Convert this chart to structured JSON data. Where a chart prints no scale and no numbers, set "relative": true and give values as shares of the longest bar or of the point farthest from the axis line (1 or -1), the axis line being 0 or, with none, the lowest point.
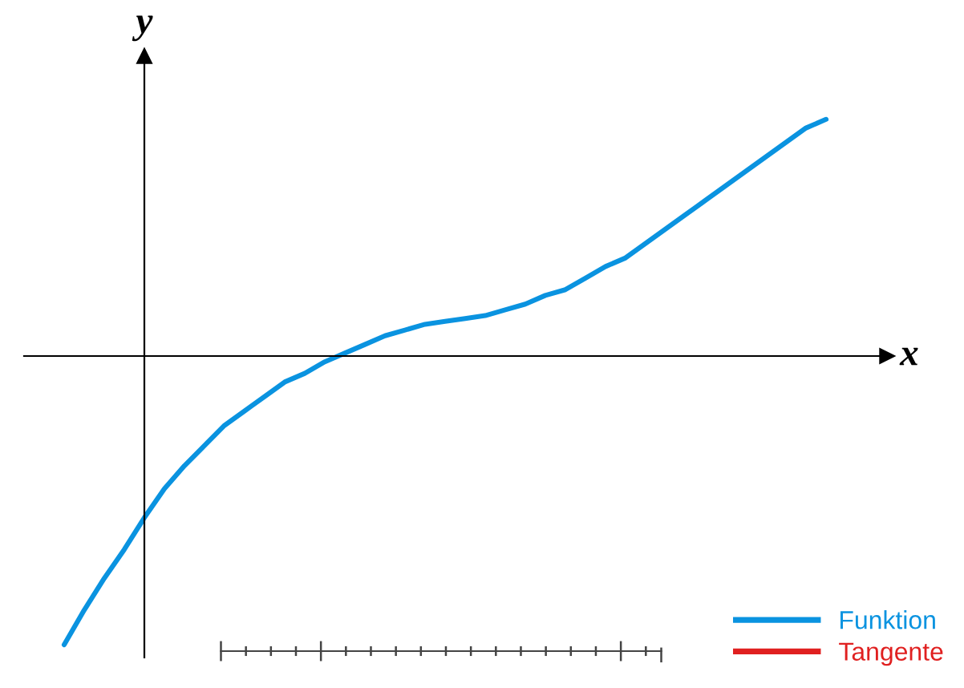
{
  "chart_data": {
    "type": "line",
    "relative": true,
    "xlabel": "x",
    "ylabel": "y",
    "legend": "bottom right",
    "marker": "none",
    "line_style": "solid",
    "categories": [
      null,
      null,
      null,
      null,
      null,
      null,
      null,
      null,
      null,
      null,
      null,
      null,
      null,
      null,
      null,
      null,
      null,
      null,
      null,
      null,
      null,
      null,
      null,
      null,
      null,
      null,
      null,
      null,
      null,
      null,
      null,
      null,
      null,
      null,
      null,
      null,
      null,
      null,
      null
    ],
    "series": [
      {
        "name": "Funktion",
        "color": "#0a93e0",
        "values": [
          -1.0,
          -0.88,
          -0.77,
          -0.67,
          -0.56,
          -0.46,
          -0.38,
          -0.31,
          -0.24,
          -0.19,
          -0.14,
          -0.09,
          -0.06,
          -0.02,
          0.01,
          0.04,
          0.07,
          0.09,
          0.11,
          0.12,
          0.13,
          0.14,
          0.16,
          0.18,
          0.21,
          0.23,
          0.27,
          0.31,
          0.34,
          0.39,
          0.44,
          0.49,
          0.54,
          0.59,
          0.64,
          0.69,
          0.74,
          0.79,
          0.82
        ]
      },
      {
        "name": "Tangente",
        "color": "#e02020",
        "values": [
          null,
          null,
          null,
          null,
          null,
          null,
          null,
          null,
          null,
          null,
          null,
          null,
          null,
          null,
          null,
          null,
          null,
          null,
          null,
          null,
          null,
          null,
          null,
          null,
          null,
          null,
          null,
          null,
          null,
          null,
          null,
          null,
          null,
          null,
          null,
          null,
          null,
          null,
          null
        ]
      }
    ]
  }
}
